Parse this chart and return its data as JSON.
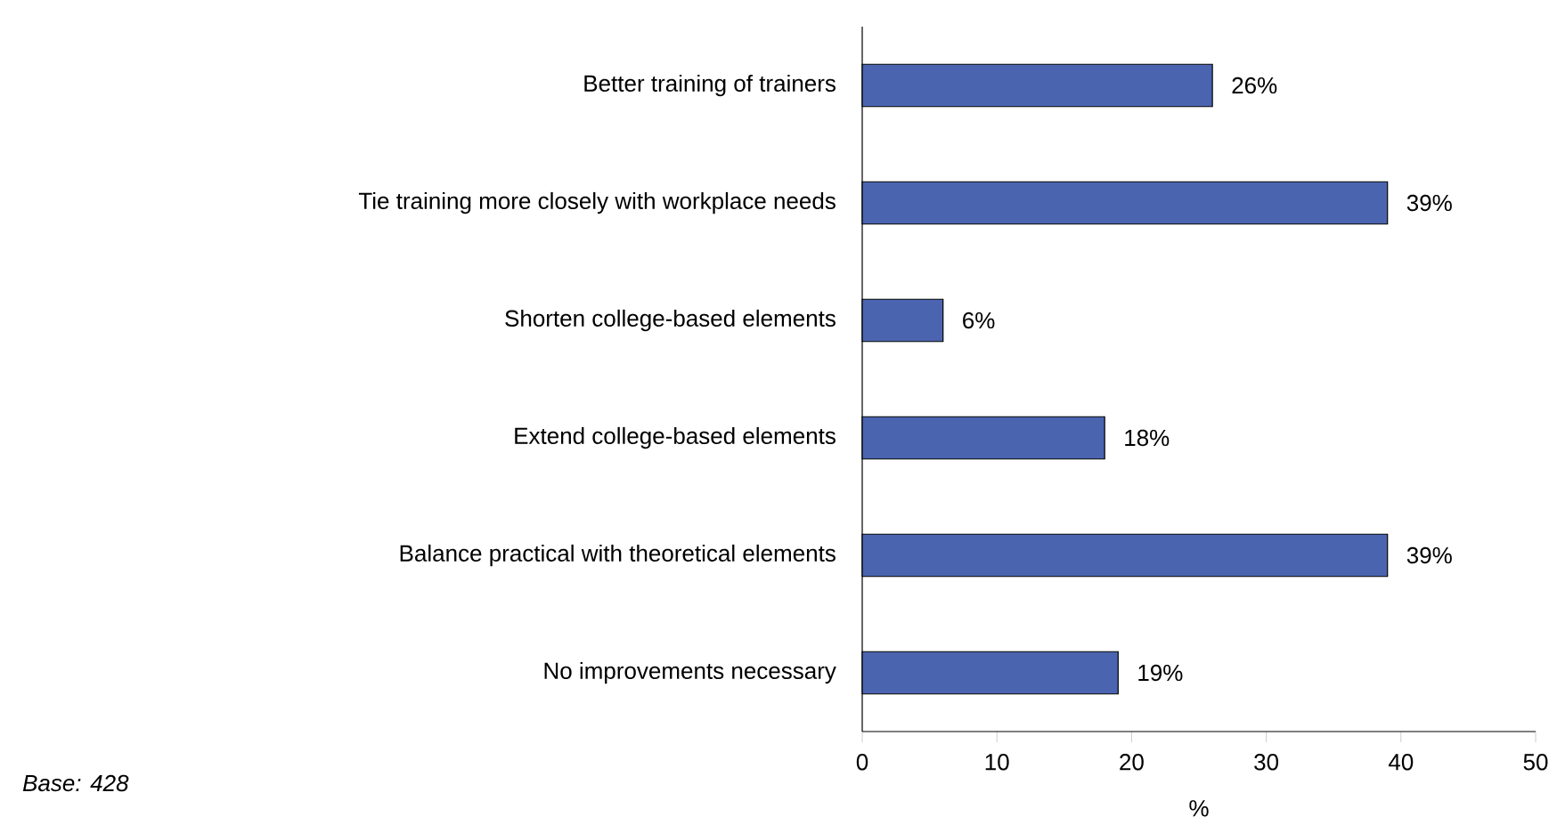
{
  "chart_data": {
    "type": "bar",
    "orientation": "horizontal",
    "categories": [
      "Better training of trainers",
      "Tie training more closely with workplace needs",
      "Shorten college-based elements",
      "Extend college-based elements",
      "Balance practical with theoretical elements",
      "No improvements necessary"
    ],
    "values": [
      26,
      39,
      6,
      18,
      39,
      19
    ],
    "value_labels": [
      "26%",
      "39%",
      "6%",
      "18%",
      "39%",
      "19%"
    ],
    "color": "#4a64b0",
    "xlim": [
      0,
      50
    ],
    "xticks": [
      0,
      10,
      20,
      30,
      40,
      50
    ],
    "xlabel": "%",
    "annotations": [
      "Base: 428"
    ]
  }
}
